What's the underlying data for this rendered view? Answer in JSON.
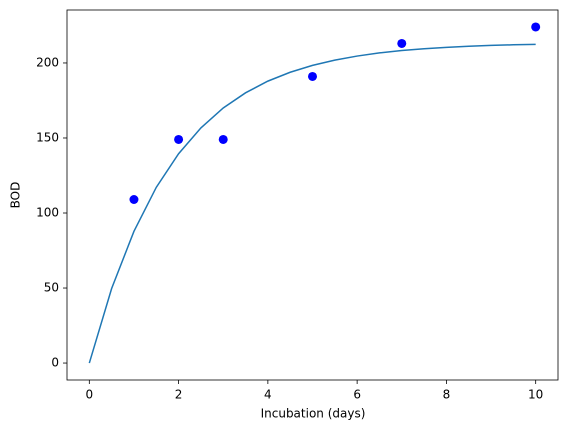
{
  "chart_data": {
    "type": "scatter",
    "xlabel": "Incubation (days)",
    "ylabel": "BOD",
    "xlim": [
      -0.5,
      10.5
    ],
    "ylim": [
      -11.3,
      235.3
    ],
    "xticks": [
      0,
      2,
      4,
      6,
      8,
      10
    ],
    "yticks": [
      0,
      50,
      100,
      150,
      200
    ],
    "grid": false,
    "series": [
      {
        "type": "line",
        "color": "#1f77b4",
        "x": [
          0,
          0.5,
          1,
          1.5,
          2,
          2.5,
          3,
          3.5,
          4,
          4.5,
          5,
          5.5,
          6,
          6.5,
          7,
          7.5,
          8,
          8.5,
          9,
          9.5,
          10
        ],
        "values": [
          0,
          49.7,
          87.8,
          117.1,
          139.5,
          156.7,
          170.0,
          180.1,
          187.9,
          193.8,
          198.4,
          201.9,
          204.6,
          206.7,
          208.3,
          209.5,
          210.4,
          211.1,
          211.7,
          212.1,
          212.4
        ]
      },
      {
        "type": "scatter",
        "color": "#0000ff",
        "x": [
          1,
          2,
          3,
          5,
          7,
          10
        ],
        "values": [
          109,
          149,
          149,
          191,
          213,
          224
        ]
      }
    ]
  }
}
